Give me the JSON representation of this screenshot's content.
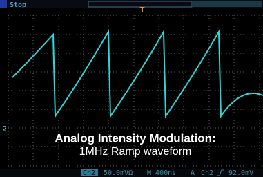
{
  "status": "Stop",
  "trigger_marker": "T",
  "channel_marker": "2",
  "caption": {
    "title": "Analog Intensity Modulation:",
    "subtitle": "1MHz Ramp waveform"
  },
  "readout": {
    "channel": "Ch2",
    "scale": "50.0mVΩ",
    "timebase": "M 400ns",
    "mode": "A",
    "trigger_channel": "Ch2",
    "trigger_level": "92.0mV"
  }
}
